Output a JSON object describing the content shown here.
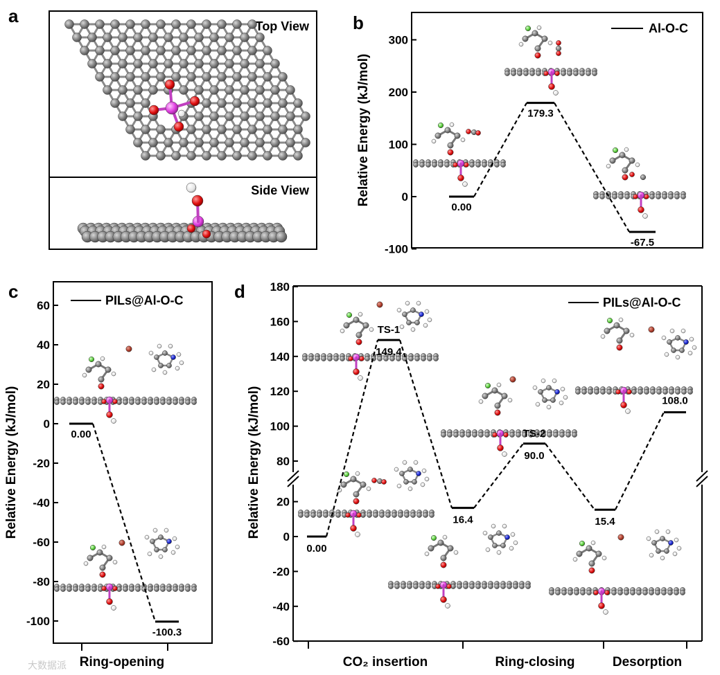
{
  "panel_a": {
    "label": "a",
    "top_view": "Top View",
    "side_view": "Side View"
  },
  "watermark": "大数据派",
  "chart_data": [
    {
      "panel": "b",
      "type": "line",
      "style": "energy-profile",
      "ylabel": "Relative Energy (kJ/mol)",
      "ylim": [
        -100,
        340
      ],
      "yticks": [
        -100,
        0,
        100,
        200,
        300
      ],
      "legend": "Al-O-C",
      "legend_position": "top-right",
      "states": [
        {
          "value": 0.0,
          "label": "0.00"
        },
        {
          "value": 179.3,
          "label": "179.3"
        },
        {
          "value": -67.5,
          "label": "-67.5"
        }
      ]
    },
    {
      "panel": "c",
      "type": "line",
      "style": "energy-profile",
      "ylabel": "Relative Energy (kJ/mol)",
      "ylim": [
        -110,
        65
      ],
      "yticks": [
        -100,
        -80,
        -60,
        -40,
        -20,
        0,
        20,
        40,
        60
      ],
      "legend": "PILs@Al-O-C",
      "legend_position": "top-right",
      "categories": [
        "Ring-opening"
      ],
      "states": [
        {
          "value": 0.0,
          "label": "0.00"
        },
        {
          "value": -100.3,
          "label": "-100.3"
        }
      ]
    },
    {
      "panel": "d",
      "type": "line",
      "style": "energy-profile",
      "ylabel": "Relative Energy (kJ/mol)",
      "broken_axis": true,
      "ylim": [
        -60,
        180
      ],
      "yticks": [
        -60,
        -40,
        -20,
        0,
        20,
        80,
        100,
        120,
        140,
        160,
        180
      ],
      "legend": "PILs@Al-O-C",
      "legend_position": "top-right",
      "categories": [
        "CO₂ insertion",
        "Ring-closing",
        "Desorption"
      ],
      "states": [
        {
          "value": 0.0,
          "label": "0.00"
        },
        {
          "value": 149.4,
          "label": "149.4",
          "name": "TS-1"
        },
        {
          "value": 16.4,
          "label": "16.4"
        },
        {
          "value": 90.0,
          "label": "90.0",
          "name": "TS-2"
        },
        {
          "value": 15.4,
          "label": "15.4"
        },
        {
          "value": 108.0,
          "label": "108.0"
        }
      ]
    }
  ]
}
